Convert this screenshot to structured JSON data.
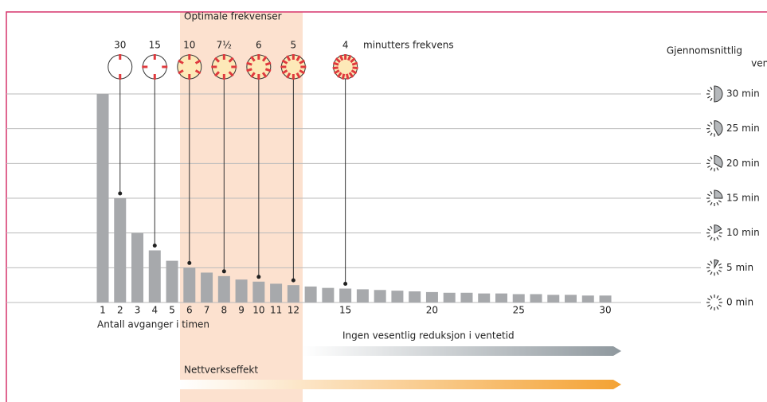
{
  "chart_data": {
    "type": "bar",
    "highlight_label": "Optimale frekvenser",
    "frequencies": [
      "30",
      "15",
      "10",
      "7½",
      "6",
      "5",
      "4"
    ],
    "frequency_unit": "minutters frekvens",
    "xlabel": "Antall avganger i timen",
    "y2label": [
      "Gjennomsnittlig",
      "ventetid"
    ],
    "categories": [
      1,
      2,
      3,
      4,
      5,
      6,
      7,
      8,
      9,
      10,
      11,
      12,
      null,
      null,
      15,
      null,
      null,
      null,
      null,
      20,
      null,
      null,
      null,
      null,
      25,
      null,
      null,
      null,
      null,
      30
    ],
    "values": [
      30,
      15,
      10,
      7.5,
      6,
      5,
      4.3,
      3.8,
      3.3,
      3,
      2.7,
      2.5,
      2.3,
      2.1,
      2,
      1.9,
      1.8,
      1.7,
      1.6,
      1.5,
      1.4,
      1.4,
      1.3,
      1.3,
      1.2,
      1.2,
      1.1,
      1.1,
      1,
      1
    ],
    "color": "#a7a9ac",
    "ylim": [
      0,
      30
    ],
    "yticks": [
      {
        "value": 0,
        "label": "0 min"
      },
      {
        "value": 5,
        "label": "5 min"
      },
      {
        "value": 10,
        "label": "10 min"
      },
      {
        "value": 15,
        "label": "15 min"
      },
      {
        "value": 20,
        "label": "20 min"
      },
      {
        "value": 25,
        "label": "25 min"
      },
      {
        "value": 30,
        "label": "30 min"
      }
    ],
    "grid": true,
    "arrows": [
      "Ingen vesentlig reduksjon i ventetid",
      "Nettverkseffekt"
    ]
  }
}
